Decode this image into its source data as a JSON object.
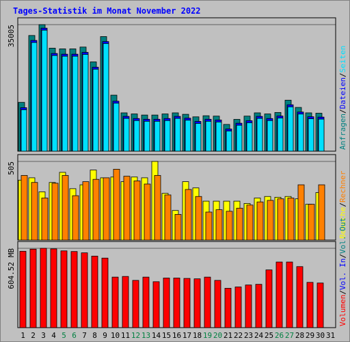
{
  "title": "Tages-Statistik im Monat November 2022",
  "colors": {
    "frame_bg": "#c0c0c0",
    "title": "#0000ff",
    "anfragen": "#008080",
    "dateien": "#0000ff",
    "seiten": "#00e0ff",
    "besuche": "#ffff00",
    "rechner": "#ff8000",
    "volumen": "#ff0000",
    "weekend_day": "#008040",
    "weekday": "#000000"
  },
  "chart_data": [
    {
      "type": "bar",
      "panel": "requests",
      "ymax_label": "35005",
      "ylim": [
        0,
        35005
      ],
      "legend": [
        "Anfragen",
        "Dateien",
        "Seiten"
      ],
      "legend_separator": "/",
      "x": [
        1,
        2,
        3,
        4,
        5,
        6,
        7,
        8,
        9,
        10,
        11,
        12,
        13,
        14,
        15,
        16,
        17,
        18,
        19,
        20,
        21,
        22,
        23,
        24,
        25,
        26,
        27,
        28,
        29,
        30
      ],
      "series": [
        {
          "name": "Anfragen",
          "color": "#008080",
          "values": [
            13500,
            32000,
            35005,
            28500,
            28300,
            28300,
            28800,
            24700,
            31700,
            15500,
            10600,
            10300,
            10000,
            10000,
            10300,
            10600,
            10200,
            9500,
            9800,
            9700,
            7400,
            8800,
            9700,
            10600,
            10300,
            10700,
            14100,
            12100,
            10600,
            10500
          ]
        },
        {
          "name": "Dateien",
          "color": "#0000ff",
          "values": [
            12600,
            31200,
            34600,
            27600,
            27400,
            27400,
            27900,
            23800,
            30900,
            14400,
            10200,
            9600,
            9400,
            9400,
            9600,
            10200,
            9700,
            8800,
            9400,
            9200,
            6700,
            8300,
            9000,
            10200,
            9600,
            10300,
            13400,
            11400,
            10100,
            10000
          ]
        },
        {
          "name": "Seiten",
          "color": "#00e0ff",
          "values": [
            12600,
            31200,
            34600,
            27600,
            27400,
            27400,
            27900,
            23800,
            30900,
            14400,
            10200,
            9600,
            9400,
            9400,
            9600,
            10200,
            9700,
            8800,
            9400,
            9200,
            6700,
            8300,
            9000,
            10200,
            9600,
            10300,
            13400,
            11400,
            10100,
            10000
          ]
        }
      ]
    },
    {
      "type": "bar",
      "panel": "visits",
      "ymax_label": "505",
      "ylim": [
        0,
        505
      ],
      "legend": [
        "Besuche",
        "Rechner"
      ],
      "legend_separator": "/",
      "x": [
        1,
        2,
        3,
        4,
        5,
        6,
        7,
        8,
        9,
        10,
        11,
        12,
        13,
        14,
        15,
        16,
        17,
        18,
        19,
        20,
        21,
        22,
        23,
        24,
        25,
        26,
        27,
        28,
        29,
        30
      ],
      "series": [
        {
          "name": "Besuche",
          "color": "#ffff00",
          "values": [
            385,
            400,
            310,
            370,
            435,
            330,
            355,
            450,
            400,
            405,
            375,
            405,
            400,
            505,
            300,
            190,
            375,
            335,
            250,
            250,
            250,
            250,
            235,
            270,
            280,
            275,
            280,
            265,
            230,
            305
          ]
        },
        {
          "name": "Rechner",
          "color": "#ff8000",
          "values": [
            415,
            370,
            270,
            365,
            415,
            285,
            375,
            390,
            400,
            455,
            410,
            380,
            360,
            415,
            290,
            165,
            325,
            280,
            180,
            195,
            185,
            205,
            225,
            245,
            255,
            265,
            270,
            355,
            230,
            355
          ]
        }
      ]
    },
    {
      "type": "bar",
      "panel": "traffic",
      "ymax_label": "604.52 MB",
      "ylim": [
        0,
        604.52
      ],
      "legend": [
        "Volumen",
        "Vol. In",
        "Vol. Out"
      ],
      "legend_separator": "/",
      "x": [
        1,
        2,
        3,
        4,
        5,
        6,
        7,
        8,
        9,
        10,
        11,
        12,
        13,
        14,
        15,
        16,
        17,
        18,
        19,
        20,
        21,
        22,
        23,
        24,
        25,
        26,
        27,
        28,
        29,
        30
      ],
      "series": [
        {
          "name": "Volumen",
          "color": "#ff0000",
          "values": [
            582,
            598,
            604.52,
            600,
            585,
            580,
            570,
            545,
            530,
            385,
            390,
            360,
            385,
            350,
            378,
            378,
            375,
            372,
            385,
            360,
            300,
            310,
            325,
            330,
            440,
            500,
            500,
            465,
            345,
            340
          ]
        }
      ]
    }
  ],
  "day_labels": [
    "1",
    "2",
    "3",
    "4",
    "5",
    "6",
    "7",
    "8",
    "9",
    "10",
    "11",
    "12",
    "13",
    "14",
    "15",
    "16",
    "17",
    "18",
    "19",
    "20",
    "21",
    "22",
    "23",
    "24",
    "25",
    "26",
    "27",
    "28",
    "29",
    "30",
    "31"
  ],
  "weekend_days": [
    5,
    6,
    12,
    13,
    19,
    20,
    26,
    27
  ]
}
